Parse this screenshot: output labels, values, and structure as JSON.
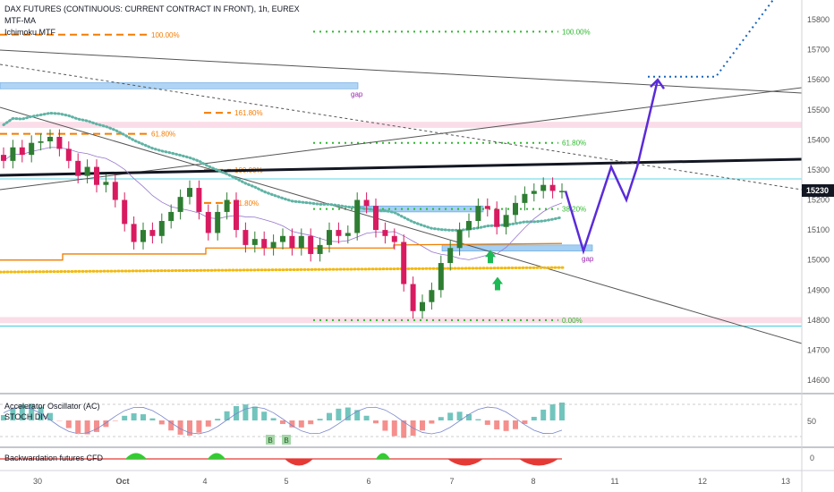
{
  "header": {
    "title": "DAX FUTURES (CONTINUOUS: CURRENT CONTRACT IN FRONT), 1h, EUREX",
    "indicators": [
      "MTF-MA",
      "Ichimoku MTF"
    ]
  },
  "panes": {
    "oscillator_labels": [
      "Accelerator Oscillator (AC)",
      "STOCH DIV"
    ],
    "backwardation_label": "Backwardation futures CFD"
  },
  "last_price": "15230",
  "colors": {
    "bull": "#26a69a",
    "bear": "#ef5350",
    "candle_green": "#2e7d32",
    "candle_red": "#d81b60",
    "trend": "#131722",
    "projection": "#5b2bd9",
    "target_dots": "#1565c0",
    "fib_green": "#2eb82e",
    "fib_orange": "#f57c00",
    "ma_teal": "#5fb3a4",
    "ma_yellow": "#f2b90f",
    "ma_orange": "#ef7d00",
    "gap_zone": "#8fc3f0",
    "pink_zone": "#f7c6d9",
    "accent_price": "#131722"
  },
  "chart_data": {
    "type": "candlestick",
    "title": "DAX FUTURES (CONTINUOUS: CURRENT CONTRACT IN FRONT), 1h, EUREX",
    "timeframe": "1h",
    "x_ticks": [
      "30",
      "Oct",
      "4",
      "5",
      "6",
      "7",
      "8",
      "11",
      "12",
      "13"
    ],
    "y_ticks": [
      14600,
      14700,
      14800,
      14900,
      15000,
      15100,
      15200,
      15300,
      15400,
      15500,
      15600,
      15700,
      15800
    ],
    "ylim": [
      14560,
      15890
    ],
    "last_price": 15230,
    "closes": [
      15330,
      15375,
      15350,
      15390,
      15395,
      15410,
      15370,
      15330,
      15280,
      15310,
      15250,
      15260,
      15200,
      15120,
      15060,
      15100,
      15080,
      15130,
      15160,
      15210,
      15240,
      15160,
      15090,
      15160,
      15200,
      15100,
      15050,
      15070,
      15040,
      15060,
      15080,
      15040,
      15080,
      15020,
      15050,
      15100,
      15080,
      15090,
      15200,
      15180,
      15100,
      15080,
      15060,
      14920,
      14830,
      14860,
      14900,
      14990,
      15040,
      15100,
      15130,
      15180,
      15170,
      15110,
      15150,
      15190,
      15220,
      15230,
      15250,
      15230,
      15230
    ],
    "fib_left": [
      {
        "label": "100.00%",
        "value": 15750
      },
      {
        "label": "161.80%",
        "value": 15490
      },
      {
        "label": "61.80%",
        "value": 15420
      },
      {
        "label": "100.00%",
        "value": 15300
      },
      {
        "label": "61.80%",
        "value": 15190
      }
    ],
    "fib_right": [
      {
        "label": "100.00%",
        "value": 15760
      },
      {
        "label": "61.80%",
        "value": 15390
      },
      {
        "label": "38.20%",
        "value": 15170
      },
      {
        "label": "0.00%",
        "value": 14800
      }
    ],
    "zones": [
      {
        "label": "gap",
        "from": 15570,
        "to": 15590
      },
      {
        "label": "",
        "from": 15440,
        "to": 15460
      },
      {
        "label": "",
        "from": 15160,
        "to": 15180
      },
      {
        "label": "gap",
        "from": 15030,
        "to": 15050
      },
      {
        "label": "",
        "from": 14790,
        "to": 14810
      }
    ],
    "horizontal_levels": [
      15270,
      14780
    ],
    "projection_path": [
      15230,
      15030,
      15310,
      15200,
      15310,
      15600
    ],
    "projection_target": 15610,
    "oscillator": {
      "name": "Accelerator Oscillator (AC)",
      "y_ticks": [
        50
      ],
      "divergence_labels": [
        "B",
        "B"
      ]
    },
    "backwardation": {
      "name": "Backwardation futures CFD",
      "y_ticks": [
        0
      ]
    }
  }
}
